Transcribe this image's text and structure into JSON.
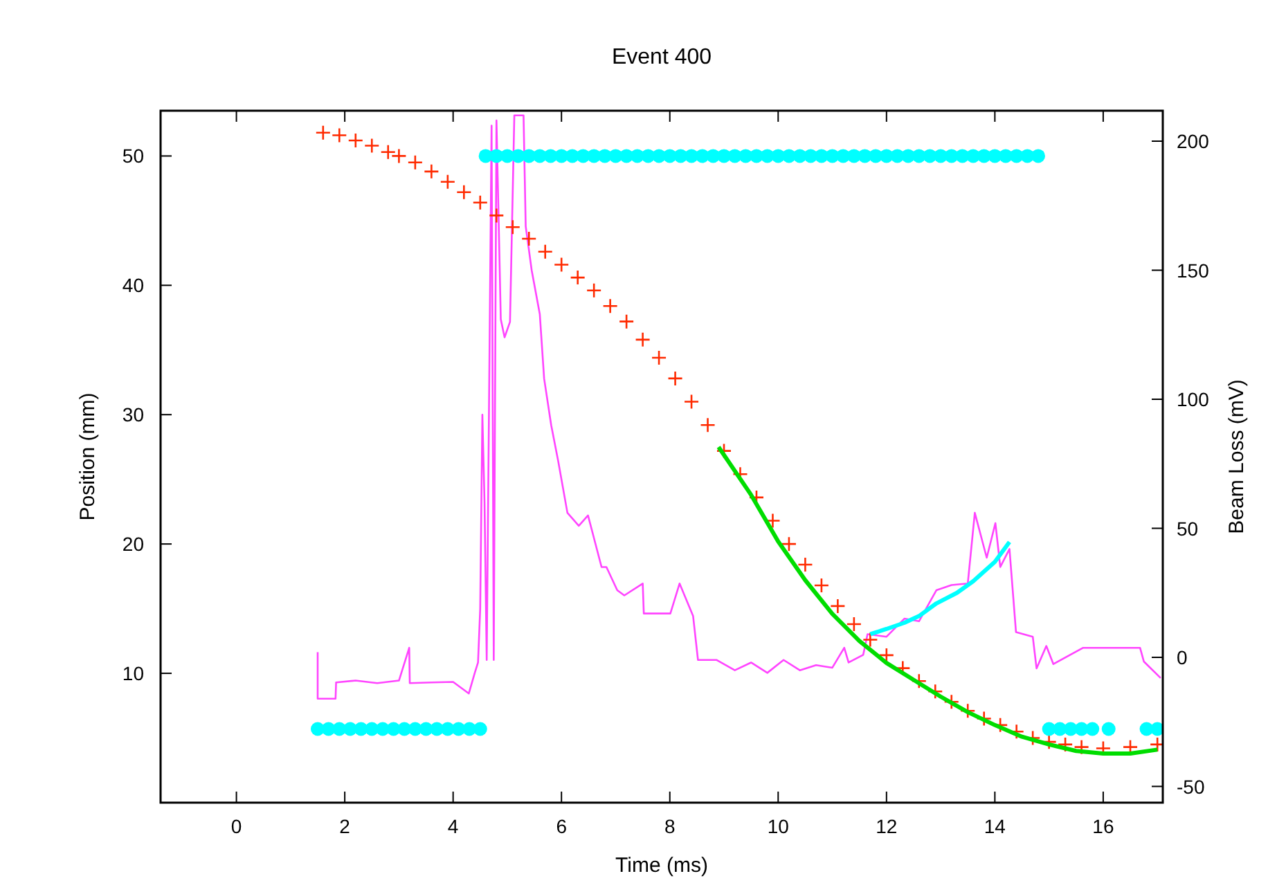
{
  "chart_data": {
    "type": "line",
    "title": "Event 400",
    "xlabel": "Time (ms)",
    "ylabel": "Position (mm)",
    "y2label": "Beam Loss (mV)",
    "xlim": [
      -1.4,
      17.1
    ],
    "xticks": [
      0,
      2,
      4,
      6,
      8,
      10,
      12,
      14,
      16
    ],
    "ylim": [
      0,
      53.5
    ],
    "yticks": [
      10,
      20,
      30,
      40,
      50
    ],
    "y2lim": [
      -56.3,
      211.8
    ],
    "y2ticks": [
      -50,
      0,
      50,
      100,
      150,
      200
    ],
    "grid": false,
    "series": [
      {
        "axis": "y2",
        "color": "#ff44ff",
        "marker": "none",
        "x": [
          1.5,
          1.5,
          1.6,
          1.83,
          1.84,
          2.2,
          2.6,
          3.0,
          3.19,
          3.2,
          3.6,
          4.0,
          4.29,
          4.4,
          4.46,
          4.5,
          4.54,
          4.58,
          4.62,
          4.71,
          4.75,
          4.8,
          4.84,
          4.88,
          4.95,
          5.05,
          5.13,
          5.3,
          5.34,
          5.45,
          5.6,
          5.68,
          5.81,
          5.94,
          6.11,
          6.32,
          6.49,
          6.74,
          6.83,
          7.03,
          7.16,
          7.5,
          7.52,
          8.01,
          8.18,
          8.43,
          8.52,
          8.86,
          9.2,
          9.5,
          9.8,
          10.1,
          10.4,
          10.7,
          11.0,
          11.22,
          11.3,
          11.57,
          11.65,
          12.0,
          12.33,
          12.6,
          12.92,
          13.2,
          13.5,
          13.63,
          13.85,
          14.01,
          14.1,
          14.27,
          14.39,
          14.7,
          14.77,
          14.95,
          15.08,
          15.63,
          16.68,
          16.75,
          17.06
        ],
        "values": [
          2,
          -16,
          -16,
          -16,
          -9.7,
          -9,
          -10,
          -9,
          3.7,
          -10,
          -9.7,
          -9.5,
          -14,
          -6,
          -2,
          18.8,
          94,
          60,
          -1,
          206,
          -1,
          208,
          170,
          131,
          124,
          130,
          210,
          210,
          167,
          150,
          133,
          108,
          90,
          76,
          56,
          51,
          55,
          35,
          35,
          26,
          24,
          28.6,
          17,
          17,
          28.6,
          16,
          -1,
          -1,
          -5,
          -2,
          -6,
          -1,
          -5,
          -3,
          -4,
          3.7,
          -2,
          1,
          9,
          8,
          15,
          14,
          26,
          28,
          28.6,
          56,
          38.6,
          52,
          35,
          42,
          9.8,
          8,
          -4.3,
          4.4,
          -2.6,
          3.7,
          3.7,
          -1.6,
          -8
        ]
      },
      {
        "type": "scatter",
        "axis": "y",
        "color": "#ff2a00",
        "marker": "cross",
        "x": [
          1.6,
          1.9,
          2.2,
          2.5,
          2.8,
          3.0,
          3.3,
          3.6,
          3.9,
          4.2,
          4.5,
          4.8,
          5.1,
          5.4,
          5.7,
          6.0,
          6.3,
          6.6,
          6.9,
          7.2,
          7.5,
          7.8,
          8.1,
          8.4,
          8.7,
          9.0,
          9.3,
          9.6,
          9.9,
          10.2,
          10.5,
          10.8,
          11.1,
          11.4,
          11.7,
          12.0,
          12.3,
          12.6,
          12.9,
          13.2,
          13.5,
          13.8,
          14.1,
          14.4,
          14.7,
          15.0,
          15.3,
          15.6,
          16.0,
          16.5,
          17.0
        ],
        "values": [
          51.8,
          51.6,
          51.2,
          50.8,
          50.3,
          50.0,
          49.5,
          48.8,
          48.0,
          47.2,
          46.4,
          45.4,
          44.5,
          43.6,
          42.6,
          41.6,
          40.6,
          39.6,
          38.4,
          37.2,
          35.8,
          34.4,
          32.8,
          31.0,
          29.2,
          27.2,
          25.4,
          23.6,
          21.8,
          20.0,
          18.4,
          16.8,
          15.2,
          13.8,
          12.6,
          11.4,
          10.4,
          9.4,
          8.6,
          7.8,
          7.1,
          6.5,
          6.0,
          5.5,
          5.0,
          4.7,
          4.5,
          4.3,
          4.2,
          4.3,
          4.5
        ]
      },
      {
        "axis": "y",
        "color": "#00dd00",
        "marker": "none",
        "x": [
          8.9,
          9.5,
          10.0,
          10.5,
          11.0,
          11.5,
          12.0,
          12.5,
          13.0,
          13.5,
          14.0,
          14.5,
          15.0,
          15.5,
          16.0,
          16.5,
          17.0
        ],
        "values": [
          27.5,
          23.8,
          20.2,
          17.2,
          14.6,
          12.5,
          10.8,
          9.5,
          8.2,
          7.0,
          6.0,
          5.1,
          4.5,
          4.0,
          3.8,
          3.8,
          4.1
        ]
      },
      {
        "axis": "y2",
        "color": "#00ffff",
        "marker": "none",
        "x": [
          11.7,
          12.0,
          12.33,
          12.6,
          12.92,
          13.3,
          13.6,
          14.0,
          14.27
        ],
        "values": [
          9,
          11,
          13.4,
          16,
          20.9,
          25,
          29.5,
          37,
          44.7
        ]
      },
      {
        "type": "scatter",
        "axis": "y",
        "color": "#00ffff",
        "marker": "circle",
        "x": [
          1.5,
          1.7,
          1.9,
          2.1,
          2.3,
          2.5,
          2.7,
          2.9,
          3.1,
          3.3,
          3.5,
          3.7,
          3.9,
          4.1,
          4.3,
          4.5,
          4.6,
          4.8,
          5.0,
          5.2,
          5.4,
          5.6,
          5.8,
          6.0,
          6.2,
          6.4,
          6.6,
          6.8,
          7.0,
          7.2,
          7.4,
          7.6,
          7.8,
          8.0,
          8.2,
          8.4,
          8.6,
          8.8,
          9.0,
          9.2,
          9.4,
          9.6,
          9.8,
          10.0,
          10.2,
          10.4,
          10.6,
          10.8,
          11.0,
          11.2,
          11.4,
          11.6,
          11.8,
          12.0,
          12.2,
          12.4,
          12.6,
          12.8,
          13.0,
          13.2,
          13.4,
          13.6,
          13.8,
          14.0,
          14.2,
          14.4,
          14.6,
          14.8,
          15.0,
          15.2,
          15.4,
          15.6,
          15.8,
          16.1,
          16.8,
          17.0
        ],
        "values": [
          5.7,
          5.7,
          5.7,
          5.7,
          5.7,
          5.7,
          5.7,
          5.7,
          5.7,
          5.7,
          5.7,
          5.7,
          5.7,
          5.7,
          5.7,
          5.7,
          50,
          50,
          50,
          50,
          50,
          50,
          50,
          50,
          50,
          50,
          50,
          50,
          50,
          50,
          50,
          50,
          50,
          50,
          50,
          50,
          50,
          50,
          50,
          50,
          50,
          50,
          50,
          50,
          50,
          50,
          50,
          50,
          50,
          50,
          50,
          50,
          50,
          50,
          50,
          50,
          50,
          50,
          50,
          50,
          50,
          50,
          50,
          50,
          50,
          50,
          50,
          50,
          5.7,
          5.7,
          5.7,
          5.7,
          5.7,
          5.7,
          5.7,
          5.7
        ]
      }
    ]
  }
}
